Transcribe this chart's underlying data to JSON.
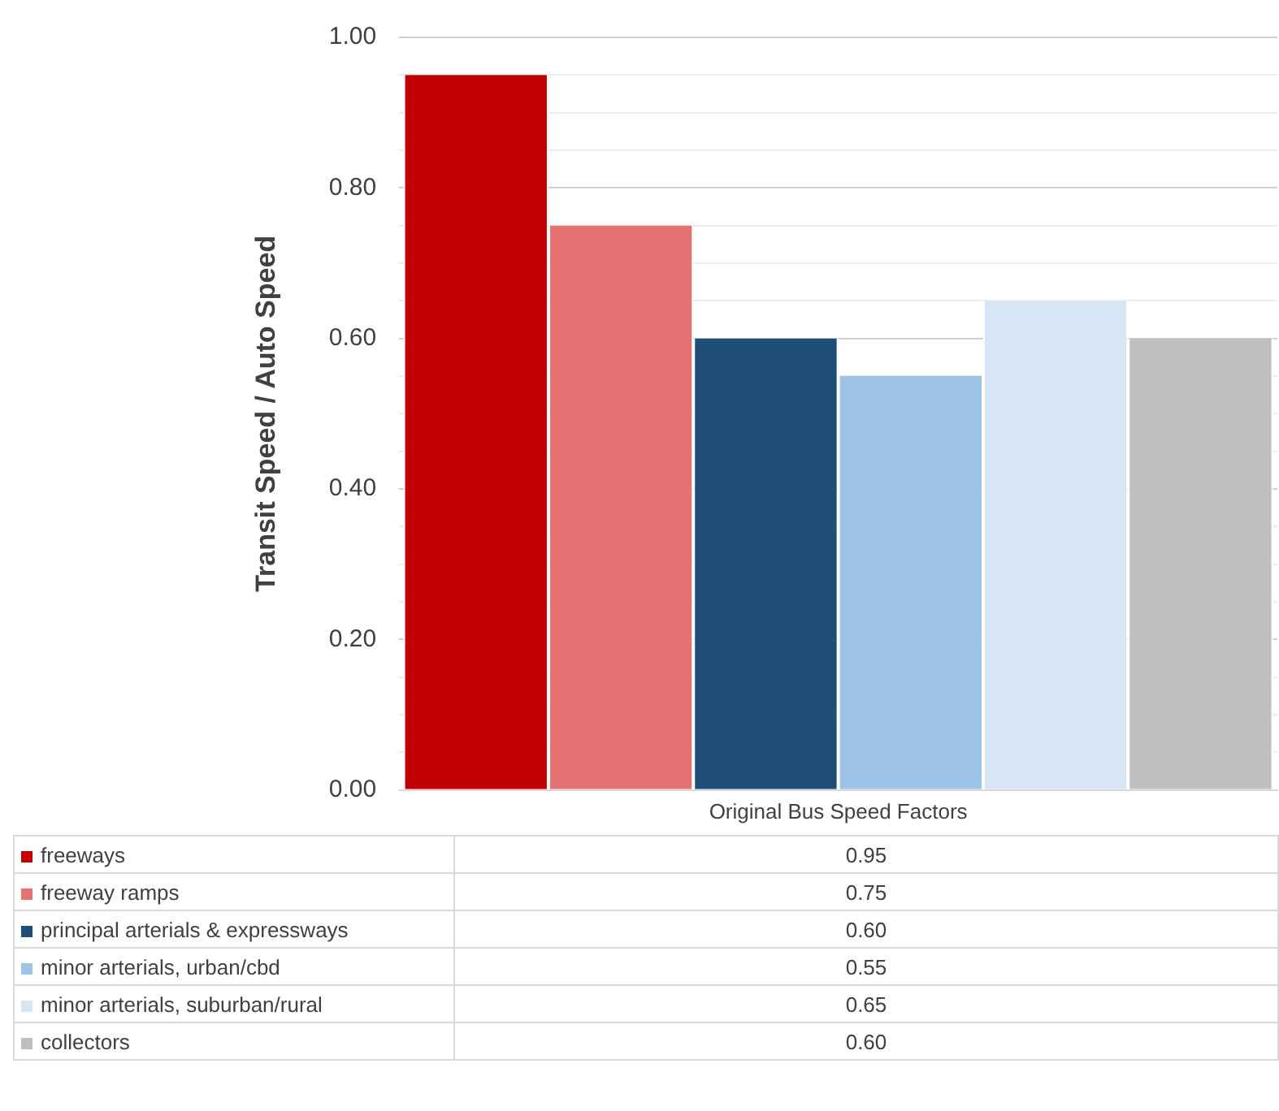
{
  "chart_data": {
    "type": "bar",
    "ylabel": "Transit Speed / Auto Speed",
    "categories": [
      "Original Bus Speed Factors"
    ],
    "series": [
      {
        "name": "freeways",
        "color": "#c00000",
        "values": [
          0.95
        ]
      },
      {
        "name": "freeway ramps",
        "color": "#e57373",
        "values": [
          0.75
        ]
      },
      {
        "name": "principal arterials & expressways",
        "color": "#1f4e79",
        "values": [
          0.6
        ]
      },
      {
        "name": "minor arterials, urban/cbd",
        "color": "#9dc3e6",
        "values": [
          0.55
        ]
      },
      {
        "name": "minor arterials, suburban/rural",
        "color": "#d6e6f4",
        "values": [
          0.65
        ]
      },
      {
        "name": "collectors",
        "color": "#bfbfbf",
        "values": [
          0.6
        ]
      }
    ],
    "value_labels": [
      "0.95",
      "0.75",
      "0.60",
      "0.55",
      "0.65",
      "0.60"
    ],
    "ylim": [
      0,
      1
    ],
    "yticks": [
      {
        "value": 0,
        "label": "0.00"
      },
      {
        "value": 0.05,
        "label": null
      },
      {
        "value": 0.1,
        "label": null
      },
      {
        "value": 0.15,
        "label": null
      },
      {
        "value": 0.2,
        "label": "0.20"
      },
      {
        "value": 0.25,
        "label": null
      },
      {
        "value": 0.3,
        "label": null
      },
      {
        "value": 0.35,
        "label": null
      },
      {
        "value": 0.4,
        "label": "0.40"
      },
      {
        "value": 0.45,
        "label": null
      },
      {
        "value": 0.5,
        "label": null
      },
      {
        "value": 0.55,
        "label": null
      },
      {
        "value": 0.6,
        "label": "0.60"
      },
      {
        "value": 0.65,
        "label": null
      },
      {
        "value": 0.7,
        "label": null
      },
      {
        "value": 0.75,
        "label": null
      },
      {
        "value": 0.8,
        "label": "0.80"
      },
      {
        "value": 0.85,
        "label": null
      },
      {
        "value": 0.9,
        "label": null
      },
      {
        "value": 0.95,
        "label": null
      },
      {
        "value": 1,
        "label": "1.00"
      }
    ],
    "grid": "y",
    "legend": "bottom"
  }
}
